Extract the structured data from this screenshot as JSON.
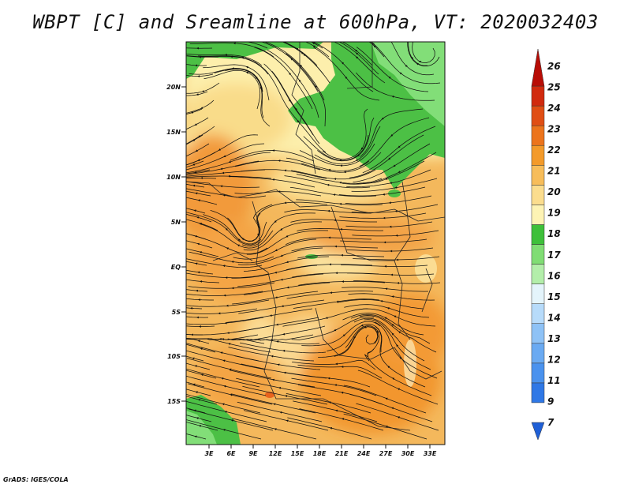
{
  "title": "WBPT [C] and Sreamline at 600hPa, VT: 2020032403",
  "credit": "GrADS: IGES/COLA",
  "map": {
    "lat_labels": [
      "20N",
      "15N",
      "10N",
      "5N",
      "EQ",
      "5S",
      "10S",
      "15S"
    ],
    "lon_labels": [
      "3E",
      "6E",
      "9E",
      "12E",
      "15E",
      "18E",
      "21E",
      "24E",
      "27E",
      "30E",
      "33E"
    ]
  },
  "colorbar": {
    "labels": [
      "7",
      "9",
      "11",
      "12",
      "13",
      "14",
      "15",
      "16",
      "17",
      "18",
      "19",
      "20",
      "21",
      "22",
      "23",
      "24",
      "25",
      "26"
    ],
    "colors": [
      "#1f5fd6",
      "#2f78e6",
      "#4a92ee",
      "#6aaaf2",
      "#8ec2f6",
      "#b7dbfa",
      "#e4f4fb",
      "#b3eeaa",
      "#80dd74",
      "#3ec03a",
      "#fdf3b4",
      "#fbdd8e",
      "#f7bd5a",
      "#f39a2a",
      "#ec741c",
      "#e04e14",
      "#d12a0e",
      "#b80d06"
    ]
  }
}
